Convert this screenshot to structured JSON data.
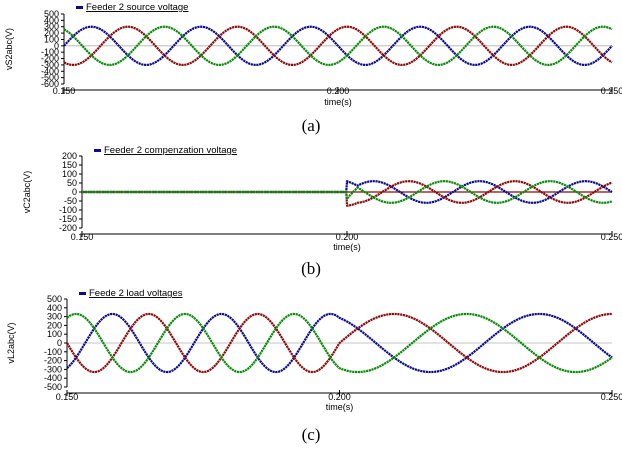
{
  "chart_data": [
    {
      "type": "line",
      "caption": "(a)",
      "title": "Feeder 2 source voltage",
      "xlabel": "time(s)",
      "ylabel": "vS2abc(V)",
      "xlim": [
        0.15,
        0.25
      ],
      "ylim": [
        -600,
        500
      ],
      "xticks": [
        "0.150",
        "0.200",
        "0.250"
      ],
      "yticks": [
        500,
        400,
        300,
        200,
        100,
        0,
        -100,
        -200,
        -300,
        -400,
        -500,
        -600
      ],
      "grid": false,
      "frequency_hz": 50,
      "series": [
        {
          "phase": "a",
          "color": "#0a0a8c",
          "amplitude": 300,
          "phase_deg": 180
        },
        {
          "phase": "b",
          "color": "#8c0a0a",
          "amplitude": 300,
          "phase_deg": 60
        },
        {
          "phase": "c",
          "color": "#0a8a0a",
          "amplitude": 300,
          "phase_deg": -60
        }
      ]
    },
    {
      "type": "line",
      "caption": "(b)",
      "title": "Feeder 2 compenzation voltage",
      "xlabel": "time(s)",
      "ylabel": "vC2abc(V)",
      "xlim": [
        0.15,
        0.25
      ],
      "ylim": [
        -200,
        200
      ],
      "xticks": [
        "0.150",
        "0.200",
        "0.250"
      ],
      "yticks": [
        200,
        150,
        100,
        50,
        0,
        -50,
        -100,
        -150,
        -200
      ],
      "grid": false,
      "frequency_hz": 50,
      "compensation_start_s": 0.2,
      "series": [
        {
          "phase": "a",
          "color": "#0a0a8c",
          "amplitude": 60,
          "phase_deg": 0
        },
        {
          "phase": "b",
          "color": "#8c0a0a",
          "amplitude": 60,
          "phase_deg": -120
        },
        {
          "phase": "c",
          "color": "#0a8a0a",
          "amplitude": 60,
          "phase_deg": 120
        }
      ]
    },
    {
      "type": "line",
      "caption": "(c)",
      "title": "Feede 2 load voltages",
      "xlabel": "time(s)",
      "ylabel": "vL2abc(V)",
      "xlim": [
        0.15,
        0.25
      ],
      "ylim": [
        -500,
        500
      ],
      "xticks": [
        "0.150",
        "0.200",
        "0.250"
      ],
      "yticks": [
        500,
        400,
        300,
        200,
        100,
        0,
        -100,
        -200,
        -300,
        -400,
        -500
      ],
      "grid": false,
      "frequency_before_hz": 50,
      "frequency_after_hz": 25,
      "series": [
        {
          "phase": "a",
          "color": "#0a0a8c",
          "amplitude": 330,
          "phase_deg": 120
        },
        {
          "phase": "b",
          "color": "#8c0a0a",
          "amplitude": 330,
          "phase_deg": 0
        },
        {
          "phase": "c",
          "color": "#0a8a0a",
          "amplitude": 330,
          "phase_deg": -120
        }
      ]
    }
  ]
}
